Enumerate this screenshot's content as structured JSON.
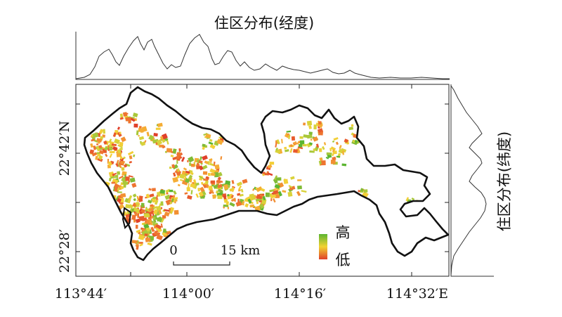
{
  "top_profile": {
    "title": "住区分布(经度)"
  },
  "side_profile": {
    "title": "住区分布(纬度)"
  },
  "map": {
    "x_ticks": [
      "113°44′",
      "114°00′",
      "114°16′",
      "114°32′E"
    ],
    "y_ticks": [
      "22°42′N",
      "22°28′"
    ]
  },
  "scalebar": {
    "start_label": "0",
    "end_label": "15 km"
  },
  "legend": {
    "high_label": "高",
    "low_label": "低",
    "colors": {
      "high": "#5bb531",
      "mid": "#f2d232",
      "low": "#e0402a"
    }
  },
  "boundary_color": "#111111"
}
